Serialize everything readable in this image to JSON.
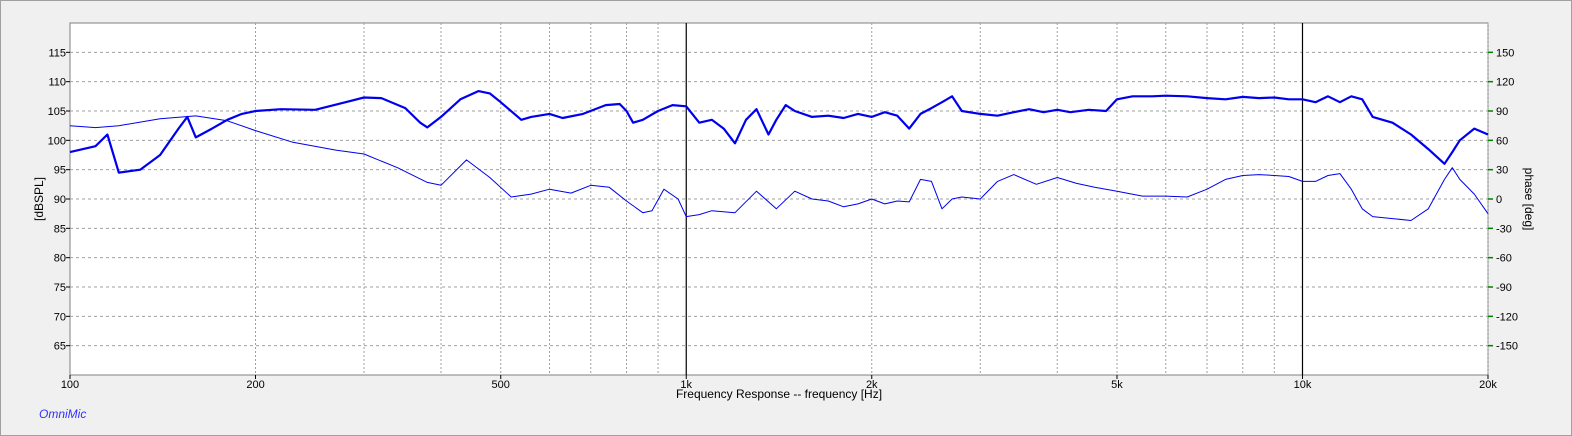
{
  "footer": {
    "brand": "OmniMic"
  },
  "chart_data": {
    "type": "line",
    "title": "",
    "xlabel": "Frequency Response -- frequency [Hz]",
    "ylabel": "[dBSPL]",
    "y2label": "phase [deg]",
    "xscale": "log",
    "xlim": [
      100,
      20000
    ],
    "ylim": [
      60,
      120
    ],
    "y2lim": [
      -180,
      180
    ],
    "x_ticks": [
      {
        "v": 100,
        "label": "100"
      },
      {
        "v": 200,
        "label": "200"
      },
      {
        "v": 500,
        "label": "500"
      },
      {
        "v": 1000,
        "label": "1k"
      },
      {
        "v": 2000,
        "label": "2k"
      },
      {
        "v": 5000,
        "label": "5k"
      },
      {
        "v": 10000,
        "label": "10k"
      },
      {
        "v": 20000,
        "label": "20k"
      }
    ],
    "y_ticks": [
      65,
      70,
      75,
      80,
      85,
      90,
      95,
      100,
      105,
      110,
      115
    ],
    "y2_ticks": [
      -150,
      -120,
      -90,
      -60,
      -30,
      0,
      30,
      60,
      90,
      120,
      150
    ],
    "grid": true,
    "line_color": "#0000ee",
    "y2_tick_color": "#008000",
    "series": [
      {
        "axis": "left",
        "width": 2.2,
        "x": [
          100,
          110,
          115,
          120,
          130,
          140,
          150,
          155,
          160,
          170,
          180,
          190,
          200,
          220,
          250,
          280,
          300,
          320,
          350,
          370,
          380,
          400,
          430,
          460,
          480,
          500,
          540,
          560,
          600,
          630,
          680,
          740,
          780,
          800,
          820,
          850,
          900,
          950,
          1000,
          1050,
          1100,
          1150,
          1200,
          1250,
          1300,
          1360,
          1400,
          1450,
          1500,
          1600,
          1700,
          1800,
          1900,
          2000,
          2100,
          2200,
          2300,
          2400,
          2500,
          2600,
          2700,
          2800,
          3000,
          3200,
          3400,
          3600,
          3800,
          4000,
          4200,
          4500,
          4800,
          5000,
          5300,
          5700,
          6000,
          6500,
          7000,
          7500,
          8000,
          8500,
          9000,
          9500,
          10000,
          10500,
          11000,
          11500,
          12000,
          12500,
          13000,
          14000,
          15000,
          16000,
          17000,
          17500,
          18000,
          19000,
          20000
        ],
        "y": [
          98.0,
          99.0,
          101.0,
          94.5,
          95.0,
          97.5,
          102.0,
          104.0,
          100.5,
          102.0,
          103.5,
          104.5,
          105.0,
          105.3,
          105.2,
          106.5,
          107.3,
          107.2,
          105.5,
          103.0,
          102.2,
          104.0,
          107.0,
          108.4,
          108.0,
          106.5,
          103.5,
          104.0,
          104.5,
          103.8,
          104.5,
          106.0,
          106.2,
          105.0,
          103.0,
          103.5,
          105.0,
          106.0,
          105.8,
          103.0,
          103.5,
          102.0,
          99.5,
          103.5,
          105.3,
          101.0,
          103.5,
          106.0,
          105.0,
          104.0,
          104.2,
          103.8,
          104.5,
          104.0,
          104.8,
          104.2,
          102.0,
          104.5,
          105.5,
          106.5,
          107.5,
          105.0,
          104.5,
          104.2,
          104.8,
          105.3,
          104.8,
          105.2,
          104.8,
          105.2,
          105.0,
          107.0,
          107.5,
          107.5,
          107.6,
          107.5,
          107.2,
          107.0,
          107.4,
          107.2,
          107.3,
          107.0,
          107.0,
          106.5,
          107.5,
          106.5,
          107.5,
          107.0,
          104.0,
          103.0,
          101.0,
          98.5,
          96.0,
          98.0,
          100.0,
          102.0,
          101.0
        ]
      },
      {
        "axis": "right",
        "width": 1.0,
        "x": [
          100,
          110,
          120,
          140,
          160,
          180,
          200,
          230,
          270,
          300,
          340,
          380,
          400,
          440,
          480,
          520,
          560,
          600,
          650,
          700,
          750,
          800,
          850,
          880,
          920,
          970,
          1000,
          1050,
          1100,
          1200,
          1300,
          1400,
          1500,
          1600,
          1700,
          1800,
          1900,
          2000,
          2100,
          2200,
          2300,
          2400,
          2500,
          2600,
          2700,
          2800,
          3000,
          3200,
          3400,
          3700,
          4000,
          4300,
          4600,
          5000,
          5500,
          6000,
          6500,
          7000,
          7500,
          8000,
          8500,
          9000,
          9500,
          10000,
          10500,
          11000,
          11500,
          12000,
          12500,
          13000,
          14000,
          15000,
          16000,
          17000,
          17500,
          18000,
          19000,
          20000
        ],
        "y": [
          75,
          73,
          75,
          82,
          85,
          80,
          70,
          58,
          50,
          46,
          32,
          17,
          14,
          40,
          22,
          2,
          5,
          10,
          6,
          14,
          12,
          -2,
          -14,
          -12,
          10,
          0,
          -18,
          -16,
          -12,
          -14,
          8,
          -10,
          8,
          0,
          -2,
          -8,
          -5,
          0,
          -5,
          -2,
          -3,
          20,
          18,
          -10,
          0,
          2,
          0,
          18,
          25,
          15,
          22,
          16,
          12,
          8,
          3,
          3,
          2,
          10,
          20,
          24,
          25,
          24,
          23,
          18,
          18,
          24,
          26,
          10,
          -10,
          -18,
          -20,
          -22,
          -10,
          20,
          32,
          20,
          5,
          -15
        ]
      }
    ]
  }
}
